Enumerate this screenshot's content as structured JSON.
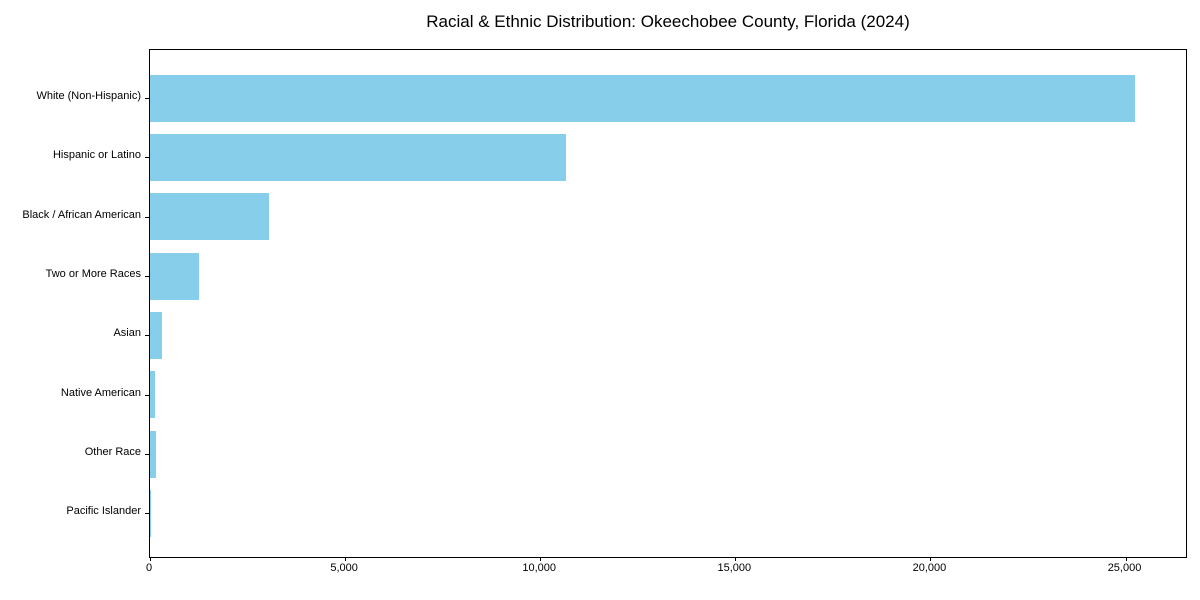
{
  "chart_data": {
    "type": "bar",
    "orientation": "horizontal",
    "title": "Racial & Ethnic Distribution: Okeechobee County, Florida (2024)",
    "xlabel": "",
    "ylabel": "",
    "categories": [
      "White (Non-Hispanic)",
      "Hispanic or Latino",
      "Black / African American",
      "Two or More Races",
      "Asian",
      "Native American",
      "Other Race",
      "Pacific Islander"
    ],
    "values": [
      25250,
      10650,
      3050,
      1250,
      300,
      140,
      160,
      10
    ],
    "xlim": [
      0,
      26550
    ],
    "x_ticks": [
      0,
      5000,
      10000,
      15000,
      20000,
      25000
    ],
    "x_tick_labels": [
      "0",
      "5,000",
      "10,000",
      "15,000",
      "20,000",
      "25,000"
    ],
    "bar_color": "#87CEEB",
    "grid": false,
    "legend_position": "none"
  }
}
